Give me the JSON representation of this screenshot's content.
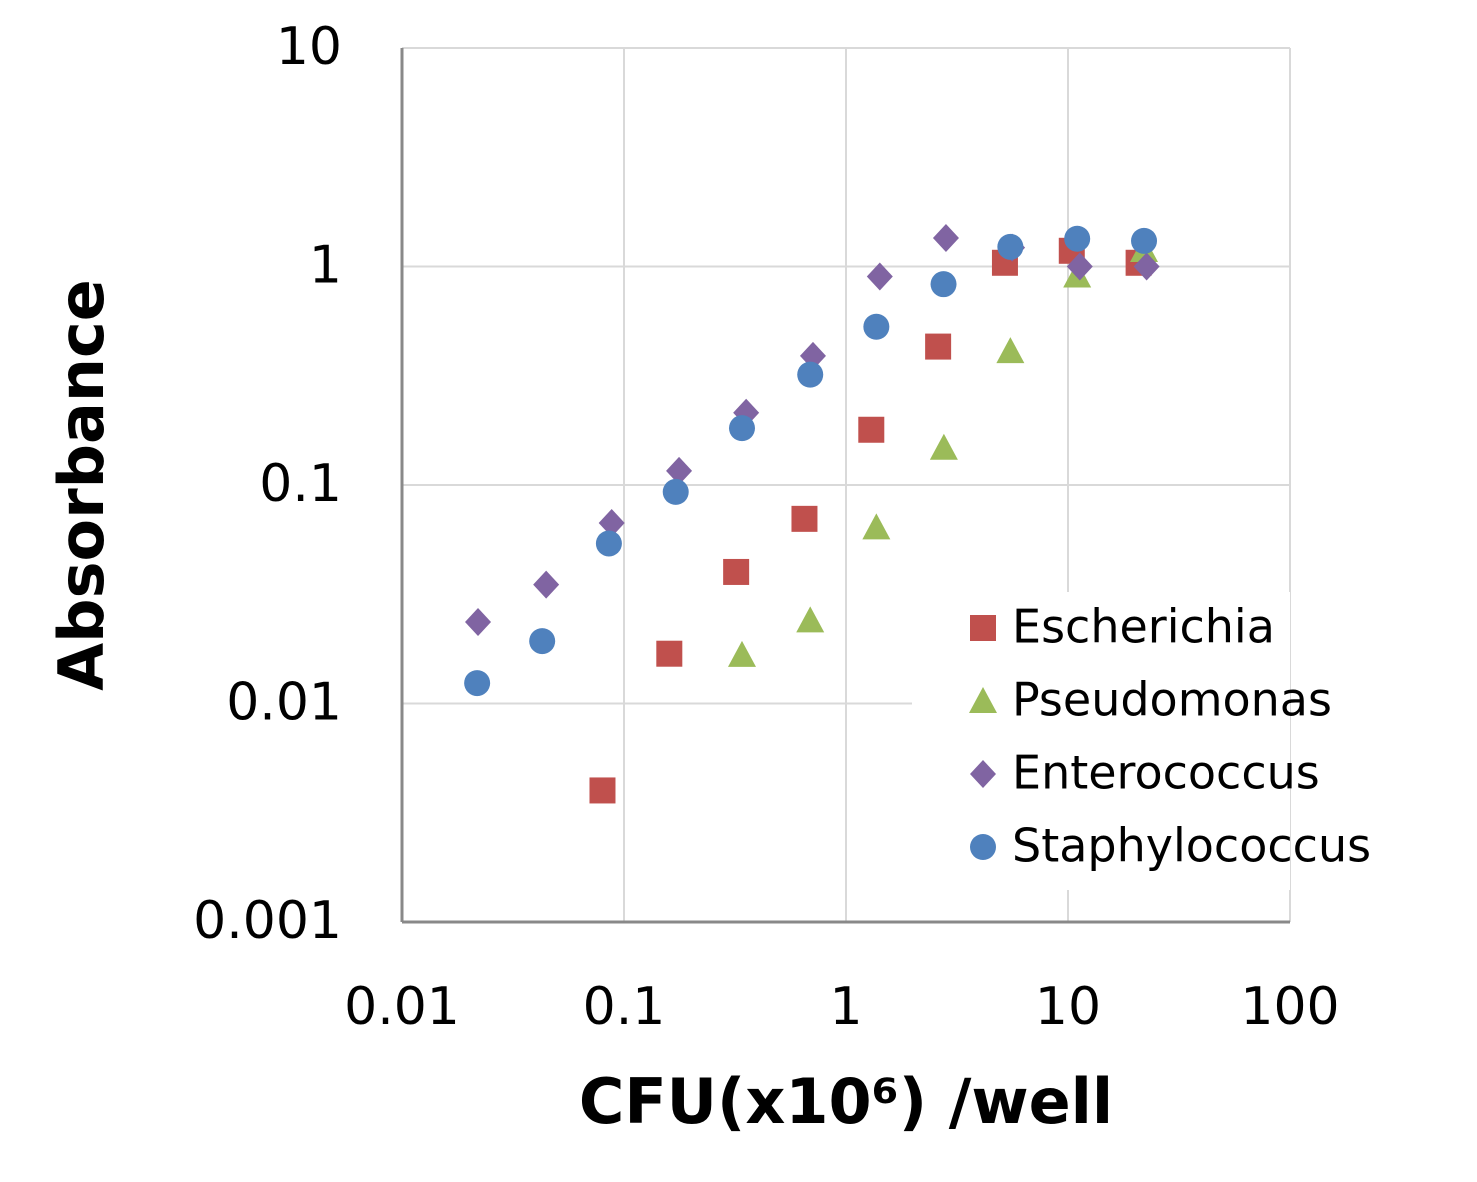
{
  "chart_data": {
    "type": "scatter",
    "x_label": "CFU(x10⁶) /well",
    "y_label": "Absorbance",
    "xscale": "log",
    "yscale": "log",
    "xlim": [
      0.01,
      100
    ],
    "xticks": [
      0.01,
      0.1,
      1,
      10,
      100
    ],
    "ylim": [
      0.001,
      10
    ],
    "yticks": [
      0.001,
      0.01,
      0.1,
      1,
      10
    ],
    "grid": true,
    "legend": "lower right",
    "series": [
      {
        "name": "Escherichia",
        "color": "#c0504d",
        "marker": "square",
        "x": [
          0.08,
          0.16,
          0.32,
          0.65,
          1.3,
          2.6,
          5.2,
          10.4,
          20.8
        ],
        "values": [
          0.004,
          0.0169,
          0.04,
          0.07,
          0.179,
          0.43,
          1.04,
          1.18,
          1.04
        ]
      },
      {
        "name": "Pseudomonas",
        "color": "#9bbb59",
        "marker": "triangle",
        "x": [
          0.34,
          0.69,
          1.37,
          2.76,
          5.5,
          11,
          22
        ],
        "values": [
          0.0167,
          0.024,
          0.064,
          0.148,
          0.41,
          0.91,
          1.19
        ]
      },
      {
        "name": "Enterococcus",
        "color": "#8064a2",
        "marker": "diamond",
        "x": [
          0.022,
          0.0446,
          0.088,
          0.177,
          0.355,
          0.71,
          1.42,
          2.82,
          5.6,
          11.3,
          22.6
        ],
        "values": [
          0.0236,
          0.035,
          0.067,
          0.116,
          0.214,
          0.39,
          0.9,
          1.35,
          1.22,
          1.0,
          1.0
        ]
      },
      {
        "name": "Staphylococcus",
        "color": "#4f81bd",
        "marker": "circle",
        "x": [
          0.0218,
          0.0428,
          0.0855,
          0.171,
          0.34,
          0.69,
          1.37,
          2.75,
          5.5,
          11,
          22
        ],
        "values": [
          0.0124,
          0.0193,
          0.054,
          0.093,
          0.182,
          0.32,
          0.53,
          0.83,
          1.23,
          1.34,
          1.31
        ]
      }
    ]
  }
}
